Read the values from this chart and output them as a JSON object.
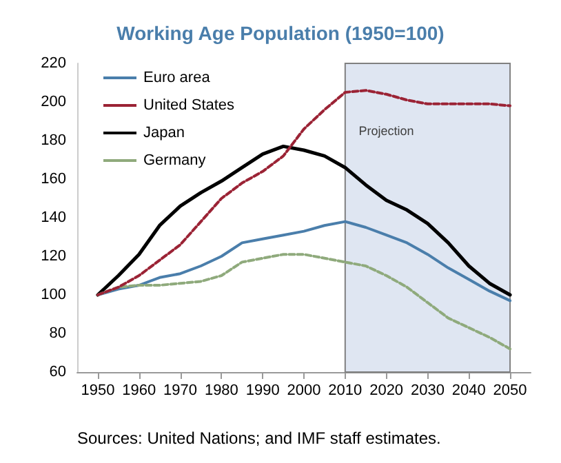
{
  "chart_data": {
    "type": "line",
    "title": "Working Age Population (1950=100)",
    "x": [
      1950,
      1955,
      1960,
      1965,
      1970,
      1975,
      1980,
      1985,
      1990,
      1995,
      2000,
      2005,
      2010,
      2015,
      2020,
      2025,
      2030,
      2035,
      2040,
      2045,
      2050
    ],
    "series": [
      {
        "name": "Euro area",
        "color": "#4a7eab",
        "line_style": "solid",
        "values": [
          100,
          103,
          105,
          109,
          111,
          115,
          120,
          127,
          129,
          131,
          133,
          136,
          138,
          135,
          131,
          127,
          121,
          114,
          108,
          102,
          97
        ]
      },
      {
        "name": "United States",
        "color": "#9b2335",
        "line_style": "dashed",
        "values": [
          100,
          104,
          110,
          118,
          126,
          138,
          150,
          158,
          164,
          172,
          186,
          196,
          205,
          206,
          204,
          201,
          199,
          199,
          199,
          199,
          198
        ]
      },
      {
        "name": "Japan",
        "color": "#000000",
        "line_style": "solid",
        "values": [
          100,
          110,
          121,
          136,
          146,
          153,
          159,
          166,
          173,
          177,
          175,
          172,
          166,
          157,
          149,
          144,
          137,
          127,
          115,
          106,
          100
        ]
      },
      {
        "name": "Germany",
        "color": "#8faa7c",
        "line_style": "dashed",
        "values": [
          100,
          104,
          105,
          105,
          106,
          107,
          110,
          117,
          119,
          121,
          121,
          119,
          117,
          115,
          110,
          104,
          96,
          88,
          83,
          78,
          72
        ]
      }
    ],
    "xlim": [
      1945,
      2055
    ],
    "xticks": [
      1950,
      1960,
      1970,
      1980,
      1990,
      2000,
      2010,
      2020,
      2030,
      2040,
      2050
    ],
    "ylim": [
      60,
      220
    ],
    "yticks": [
      60,
      80,
      100,
      120,
      140,
      160,
      180,
      200,
      220
    ],
    "bands": [
      {
        "axis": "x",
        "from": 2010,
        "to": 2050,
        "label": "Projection",
        "color": "#dfe6f2"
      }
    ],
    "annotations": [
      "Sources: United Nations; and IMF staff estimates."
    ],
    "grid": false,
    "legend": "top left",
    "marker": "none"
  }
}
